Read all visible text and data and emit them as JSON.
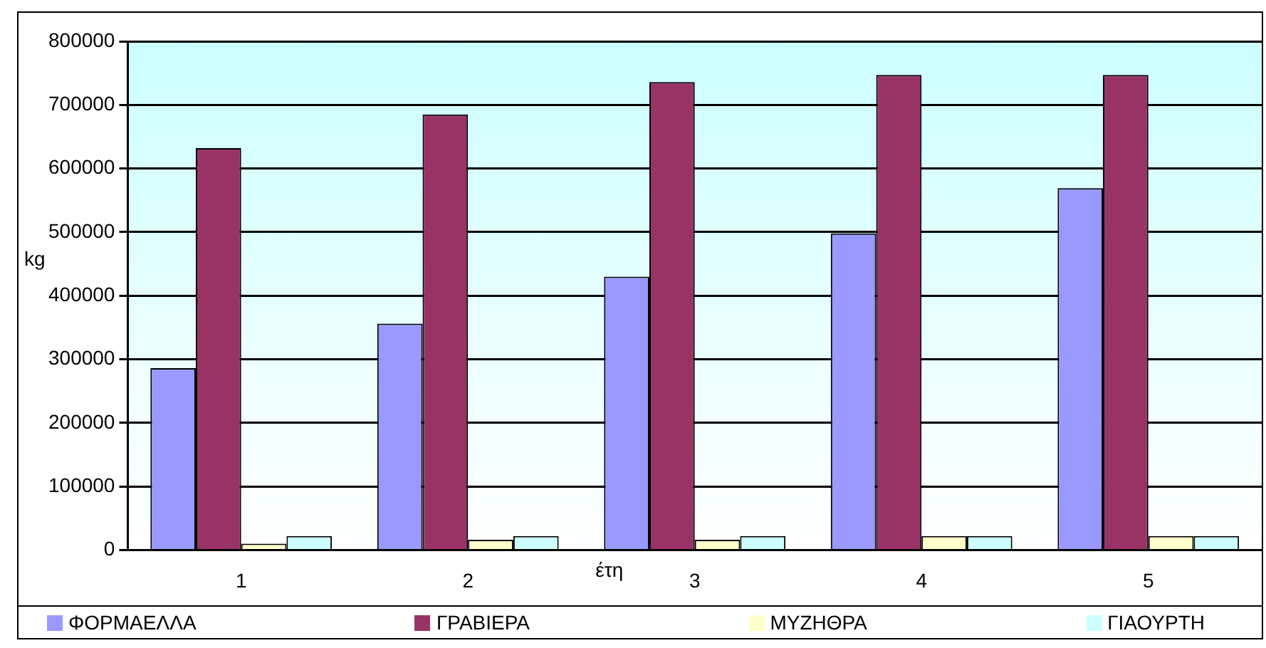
{
  "chart_data": {
    "type": "bar",
    "xlabel": "έτη",
    "ylabel": "kg",
    "categories": [
      "1",
      "2",
      "3",
      "4",
      "5"
    ],
    "series": [
      {
        "name": "ΦΟΡΜΑΕΛΛΑ",
        "color": "#9999ff",
        "values": [
          286000,
          356000,
          430000,
          498000,
          569000
        ]
      },
      {
        "name": "ΓΡΑΒΙΕΡΑ",
        "color": "#993366",
        "values": [
          632000,
          685000,
          736000,
          747000,
          747000
        ]
      },
      {
        "name": "ΜΥΖΗΘΡΑ",
        "color": "#ffffcc",
        "values": [
          10000,
          16000,
          16000,
          22000,
          22000
        ]
      },
      {
        "name": "ΓΙΑΟΥΡΤΗ",
        "color": "#ccffff",
        "values": [
          22000,
          22000,
          22000,
          22000,
          22000
        ]
      }
    ],
    "ylim": [
      0,
      800000
    ],
    "yticks": [
      0,
      100000,
      200000,
      300000,
      400000,
      500000,
      600000,
      700000,
      800000
    ],
    "grid": "y",
    "legend": "bottom"
  }
}
